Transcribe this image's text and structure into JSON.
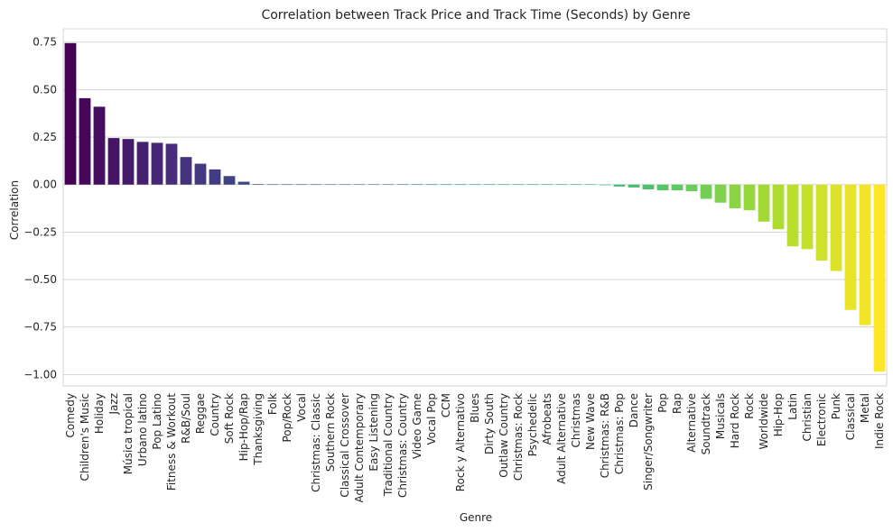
{
  "chart_data": {
    "type": "bar",
    "title": "Correlation between Track Price and Track Time (Seconds) by Genre",
    "xlabel": "Genre",
    "ylabel": "Correlation",
    "ylim": [
      -1.06,
      0.82
    ],
    "yticks": [
      "0.75",
      "0.50",
      "0.25",
      "0.00",
      "−0.25",
      "−0.50",
      "−0.75",
      "−1.00"
    ],
    "ytick_values": [
      0.75,
      0.5,
      0.25,
      0.0,
      -0.25,
      -0.5,
      -0.75,
      -1.0
    ],
    "grid": true,
    "palette": "viridis",
    "colors": [
      "#440154",
      "#472d7b",
      "#3b528b",
      "#2c728e",
      "#21918c",
      "#28ae80",
      "#5ec962",
      "#addc30",
      "#fde725"
    ],
    "categories": [
      "Comedy",
      "Children's Music",
      "Holiday",
      "Jazz",
      "Música tropical",
      "Urbano latino",
      "Pop Latino",
      "Fitness & Workout",
      "R&B/Soul",
      "Reggae",
      "Country",
      "Soft Rock",
      "Hip-Hop/Rap",
      "Thanksgiving",
      "Folk",
      "Pop/Rock",
      "Vocal",
      "Christmas: Classic",
      "Southern Rock",
      "Classical Crossover",
      "Adult Contemporary",
      "Easy Listening",
      "Traditional Country",
      "Christmas: Country",
      "Video Game",
      "Vocal Pop",
      "CCM",
      "Rock y Alternativo",
      "Blues",
      "Dirty South",
      "Outlaw Country",
      "Christmas: Rock",
      "Psychedelic",
      "Afrobeats",
      "Adult Alternative",
      "Christmas",
      "New Wave",
      "Christmas: R&B",
      "Christmas: Pop",
      "Dance",
      "Singer/Songwriter",
      "Pop",
      "Rap",
      "Alternative",
      "Soundtrack",
      "Musicals",
      "Hard Rock",
      "Rock",
      "Worldwide",
      "Hip-Hop",
      "Latin",
      "Christian",
      "Electronic",
      "Punk",
      "Classical",
      "Metal",
      "Indie Rock"
    ],
    "values": [
      0.745,
      0.455,
      0.41,
      0.245,
      0.24,
      0.225,
      0.22,
      0.215,
      0.145,
      0.11,
      0.08,
      0.045,
      0.015,
      0.003,
      0.0,
      0.0,
      0.0,
      0.0,
      0.0,
      0.0,
      0.0,
      0.0,
      0.0,
      0.0,
      0.0,
      0.0,
      0.0,
      0.0,
      0.0,
      0.0,
      0.0,
      0.0,
      0.0,
      0.0,
      0.0,
      0.0,
      0.0,
      -0.003,
      -0.01,
      -0.015,
      -0.025,
      -0.03,
      -0.03,
      -0.035,
      -0.075,
      -0.095,
      -0.125,
      -0.135,
      -0.195,
      -0.235,
      -0.325,
      -0.34,
      -0.4,
      -0.455,
      -0.66,
      -0.74,
      -0.985
    ]
  }
}
